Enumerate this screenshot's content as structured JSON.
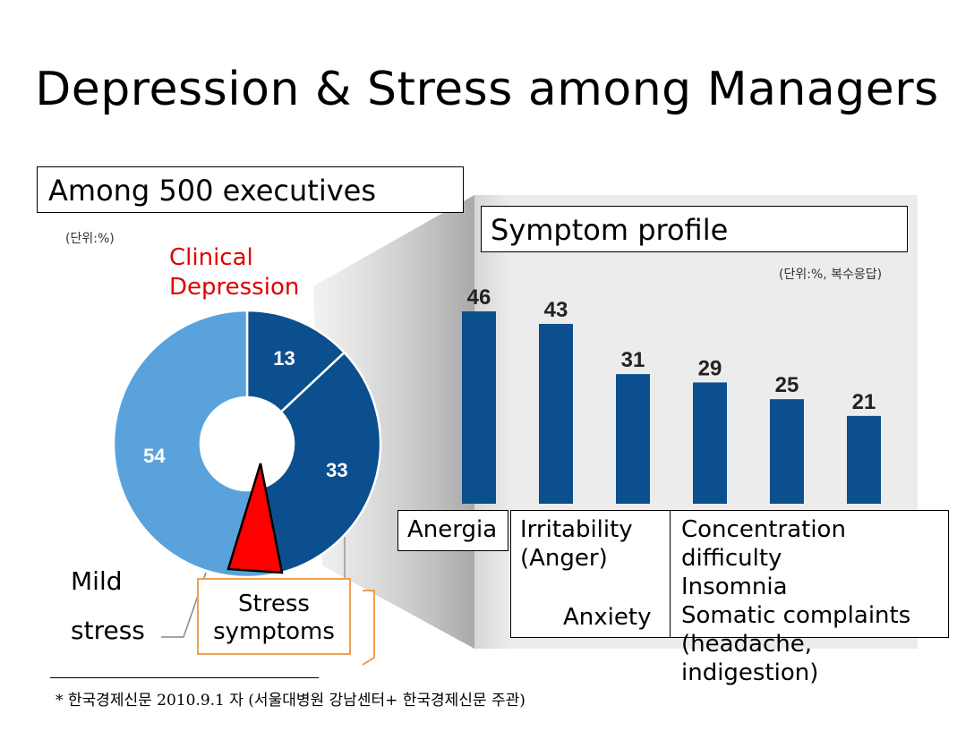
{
  "slide": {
    "title": "Depression & Stress among Managers",
    "executives_box": "Among 500 executives",
    "profile_box": "Symptom profile",
    "unit_left": "(단위:%)",
    "unit_right": "(단위:%, 복수응답)",
    "clinical_line1": "Clinical",
    "clinical_line2": "Depression",
    "mild_line1": "Mild",
    "mild_line2": "stress",
    "stress_line1": "Stress",
    "stress_line2": "symptoms",
    "cat_anergia": "Anergia",
    "cat_irritability_1": "Irritability",
    "cat_irritability_2": "(Anger)",
    "cat_anxiety": "Anxiety",
    "cat_other_1": "Concentration difficulty",
    "cat_other_2": "Insomnia",
    "cat_other_3": "Somatic complaints",
    "cat_other_4": "(headache, indigestion)",
    "footnote": "* 한국경제신문 2010.9.1 자 (서울대병원 강남센터+ 한국경제신문 주관)",
    "colors": {
      "dark_blue": "#0b4f8f",
      "light_blue": "#5aa2dc",
      "red": "#ff0000",
      "orange": "#f0a050",
      "panel_gray": "#ebebeb"
    }
  },
  "chart_data": [
    {
      "type": "pie",
      "labels": [
        "Clinical Depression",
        "Stress symptoms",
        "Mild stress"
      ],
      "values": [
        13,
        33,
        54
      ],
      "colors": [
        "#0b4f8f",
        "#0b4f8f",
        "#5aa2dc"
      ]
    },
    {
      "type": "bar",
      "categories": [
        "Anergia",
        "Irritability (Anger)",
        "Anxiety",
        "Concentration difficulty",
        "Insomnia",
        "Somatic complaints"
      ],
      "values": [
        46,
        43,
        31,
        29,
        25,
        21
      ],
      "ylim": [
        0,
        50
      ],
      "color": "#0b4f8f"
    }
  ]
}
